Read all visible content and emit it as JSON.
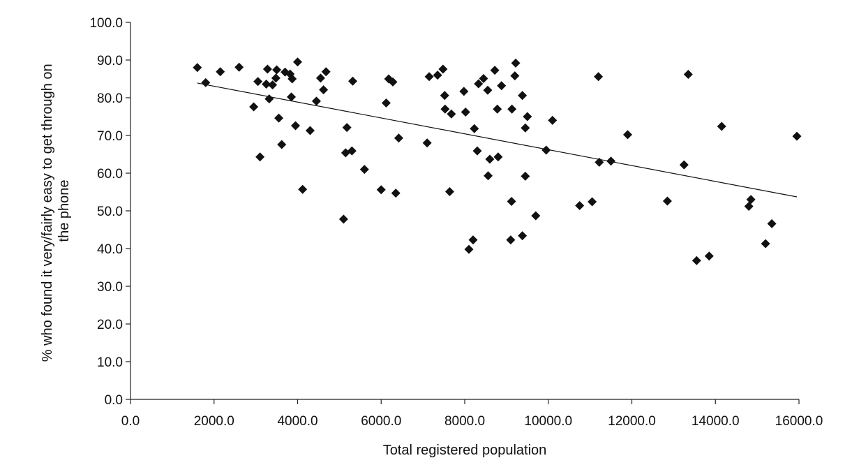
{
  "chart_data": {
    "type": "scatter",
    "title": "",
    "xlabel": "Total registered population",
    "ylabel_lines": [
      "% who found it very/fairly easy to get through on",
      "the phone"
    ],
    "xlim": [
      0,
      16000
    ],
    "ylim": [
      0,
      100
    ],
    "x_ticks": [
      0,
      2000,
      4000,
      6000,
      8000,
      10000,
      12000,
      14000,
      16000
    ],
    "x_tick_labels": [
      "0.0",
      "2000.0",
      "4000.0",
      "6000.0",
      "8000.0",
      "10000.0",
      "12000.0",
      "14000.0",
      "16000.0"
    ],
    "y_ticks": [
      0,
      10,
      20,
      30,
      40,
      50,
      60,
      70,
      80,
      90,
      100
    ],
    "y_tick_labels": [
      "0.0",
      "10.0",
      "20.0",
      "30.0",
      "40.0",
      "50.0",
      "60.0",
      "70.0",
      "80.0",
      "90.0",
      "100.0"
    ],
    "marker": "diamond",
    "grid": false,
    "trendline": {
      "x": [
        1600,
        15950
      ],
      "y": [
        83.9,
        53.7
      ]
    },
    "points": [
      [
        1600,
        88.0
      ],
      [
        1800,
        84.0
      ],
      [
        2150,
        86.9
      ],
      [
        2600,
        88.1
      ],
      [
        2950,
        77.6
      ],
      [
        3050,
        84.3
      ],
      [
        3100,
        64.3
      ],
      [
        3250,
        83.6
      ],
      [
        3280,
        87.6
      ],
      [
        3320,
        79.7
      ],
      [
        3400,
        83.4
      ],
      [
        3480,
        85.2
      ],
      [
        3500,
        87.4
      ],
      [
        3550,
        74.6
      ],
      [
        3620,
        67.6
      ],
      [
        3700,
        86.8
      ],
      [
        3820,
        86.3
      ],
      [
        3850,
        80.2
      ],
      [
        3870,
        85.0
      ],
      [
        3950,
        72.6
      ],
      [
        4000,
        89.5
      ],
      [
        4120,
        55.7
      ],
      [
        4300,
        71.3
      ],
      [
        4450,
        79.1
      ],
      [
        4550,
        85.2
      ],
      [
        4620,
        82.1
      ],
      [
        4680,
        86.9
      ],
      [
        5100,
        47.8
      ],
      [
        5150,
        65.4
      ],
      [
        5180,
        72.1
      ],
      [
        5300,
        65.9
      ],
      [
        5320,
        84.4
      ],
      [
        5600,
        61.0
      ],
      [
        6000,
        55.6
      ],
      [
        6120,
        78.6
      ],
      [
        6180,
        85.0
      ],
      [
        6280,
        84.2
      ],
      [
        6350,
        54.7
      ],
      [
        6420,
        69.3
      ],
      [
        7100,
        68.0
      ],
      [
        7150,
        85.6
      ],
      [
        7350,
        86.0
      ],
      [
        7480,
        87.6
      ],
      [
        7520,
        80.6
      ],
      [
        7530,
        77.0
      ],
      [
        7640,
        55.1
      ],
      [
        7680,
        75.7
      ],
      [
        7980,
        81.7
      ],
      [
        8020,
        76.2
      ],
      [
        8100,
        39.8
      ],
      [
        8200,
        42.3
      ],
      [
        8230,
        71.8
      ],
      [
        8300,
        65.9
      ],
      [
        8330,
        83.7
      ],
      [
        8450,
        85.1
      ],
      [
        8550,
        82.0
      ],
      [
        8560,
        59.3
      ],
      [
        8600,
        63.7
      ],
      [
        8720,
        87.3
      ],
      [
        8780,
        77.0
      ],
      [
        8800,
        64.3
      ],
      [
        8880,
        83.2
      ],
      [
        9120,
        52.5
      ],
      [
        9100,
        42.3
      ],
      [
        9130,
        77.0
      ],
      [
        9200,
        85.8
      ],
      [
        9220,
        89.2
      ],
      [
        9380,
        80.6
      ],
      [
        9380,
        43.4
      ],
      [
        9450,
        59.2
      ],
      [
        9450,
        72.0
      ],
      [
        9500,
        75.0
      ],
      [
        9700,
        48.7
      ],
      [
        9950,
        66.1
      ],
      [
        10100,
        74.0
      ],
      [
        10750,
        51.4
      ],
      [
        11050,
        52.4
      ],
      [
        11200,
        85.6
      ],
      [
        11220,
        62.9
      ],
      [
        11500,
        63.2
      ],
      [
        11900,
        70.2
      ],
      [
        12850,
        52.6
      ],
      [
        13250,
        62.2
      ],
      [
        13350,
        86.2
      ],
      [
        13550,
        36.8
      ],
      [
        13850,
        38.0
      ],
      [
        14150,
        72.4
      ],
      [
        14800,
        51.2
      ],
      [
        14850,
        53.0
      ],
      [
        15200,
        41.3
      ],
      [
        15350,
        46.6
      ],
      [
        15950,
        69.8
      ]
    ]
  }
}
